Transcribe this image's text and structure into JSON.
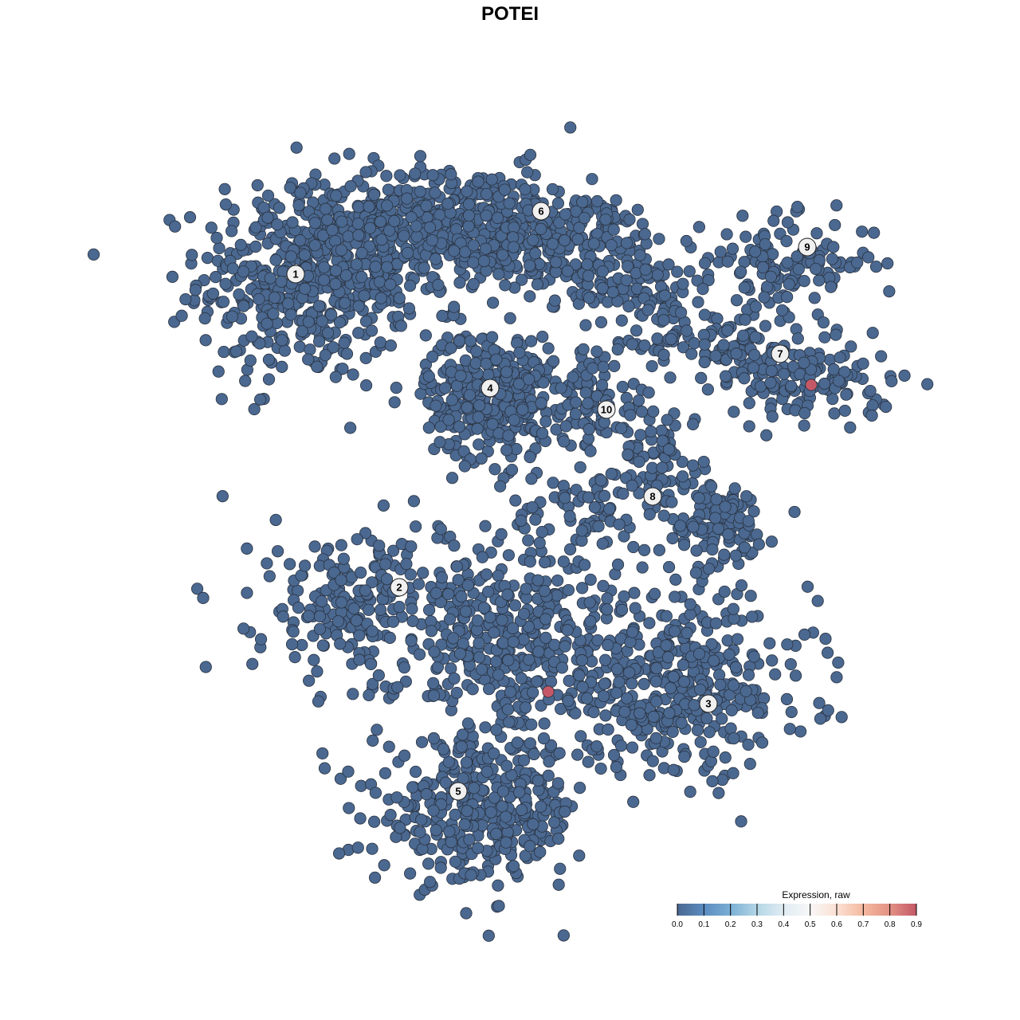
{
  "chart_data": {
    "type": "scatter",
    "title": "POTEI",
    "xlabel": "",
    "ylabel": "",
    "grid": false,
    "axes_visible": false,
    "point_color_low": "#4a6890",
    "point_color_high": "#c45867",
    "colorbar": {
      "title": "Expression, raw",
      "range": [
        0.0,
        0.9
      ],
      "ticks": [
        "0.0",
        "0.1",
        "0.2",
        "0.3",
        "0.4",
        "0.5",
        "0.6",
        "0.7",
        "0.8",
        "0.9"
      ],
      "colors": [
        "#4a6890",
        "#5b8cc0",
        "#7bafd4",
        "#b4d6e6",
        "#e0ecf3",
        "#f7f7f7",
        "#fbe0d3",
        "#f4b9a0",
        "#e39184",
        "#c45867"
      ],
      "placement": "bottom-right"
    },
    "cluster_labels": [
      {
        "label": "1",
        "x": -26.9,
        "y": 29.6
      },
      {
        "label": "2",
        "x": -13.9,
        "y": -9.7
      },
      {
        "label": "3",
        "x": 24.9,
        "y": -24.3
      },
      {
        "label": "4",
        "x": -2.5,
        "y": 15.3
      },
      {
        "label": "5",
        "x": -6.5,
        "y": -35.3
      },
      {
        "label": "6",
        "x": 3.9,
        "y": 37.5
      },
      {
        "label": "7",
        "x": 33.9,
        "y": 19.6
      },
      {
        "label": "8",
        "x": 17.9,
        "y": 1.7
      },
      {
        "label": "9",
        "x": 37.3,
        "y": 33.0
      },
      {
        "label": "10",
        "x": 12.1,
        "y": 12.6
      }
    ],
    "cell_groups": [
      {
        "cluster": "1",
        "center": [
          -26,
          29
        ],
        "sd": [
          6.5,
          6.5
        ],
        "n": 450,
        "expression": 0
      },
      {
        "cluster": "1",
        "center": [
          -15,
          33
        ],
        "sd": [
          6,
          4.5
        ],
        "n": 220,
        "expression": 0
      },
      {
        "cluster": "6",
        "center": [
          -4,
          36
        ],
        "sd": [
          7,
          3.5
        ],
        "n": 300,
        "expression": 0
      },
      {
        "cluster": "6",
        "center": [
          9,
          33
        ],
        "sd": [
          6,
          3.5
        ],
        "n": 200,
        "expression": 0
      },
      {
        "cluster": "6",
        "center": [
          17,
          27
        ],
        "sd": [
          4,
          3
        ],
        "n": 80,
        "expression": 0
      },
      {
        "cluster": "9",
        "center": [
          35,
          31
        ],
        "sd": [
          5.5,
          2.8
        ],
        "n": 130,
        "expression": 0
      },
      {
        "cluster": "7",
        "center": [
          27,
          21
        ],
        "sd": [
          5,
          2.5
        ],
        "n": 100,
        "expression": 0
      },
      {
        "cluster": "7",
        "center": [
          38,
          16
        ],
        "sd": [
          5,
          2.5
        ],
        "n": 130,
        "expression": 0
      },
      {
        "cluster": "4",
        "center": [
          -2.5,
          14.5
        ],
        "sd": [
          4,
          4
        ],
        "n": 350,
        "expression": 0
      },
      {
        "cluster": "10",
        "center": [
          11,
          14
        ],
        "sd": [
          2.8,
          3.5
        ],
        "n": 80,
        "expression": 0
      },
      {
        "cluster": "8",
        "center": [
          26,
          -2
        ],
        "sd": [
          3.5,
          3
        ],
        "n": 110,
        "expression": 0
      },
      {
        "cluster": "8",
        "center": [
          19,
          6
        ],
        "sd": [
          2.5,
          4
        ],
        "n": 80,
        "expression": 0
      },
      {
        "cluster": "8",
        "center": [
          10,
          0
        ],
        "sd": [
          5,
          2.5
        ],
        "n": 60,
        "expression": 0
      },
      {
        "cluster": "2",
        "center": [
          -20,
          -12
        ],
        "sd": [
          6,
          4.5
        ],
        "n": 200,
        "expression": 0
      },
      {
        "cluster": "3",
        "center": [
          22,
          -22
        ],
        "sd": [
          8,
          5.5
        ],
        "n": 350,
        "expression": 0
      },
      {
        "cluster": "5",
        "center": [
          -4,
          -38
        ],
        "sd": [
          6.5,
          4.5
        ],
        "n": 350,
        "expression": 0
      },
      {
        "cluster": "5",
        "center": [
          1,
          -17
        ],
        "sd": [
          7.5,
          7.5
        ],
        "n": 450,
        "expression": 0
      }
    ],
    "highlighted_cells": [
      {
        "x": 37.8,
        "y": 15.7,
        "expression": 0.9
      },
      {
        "x": 4.8,
        "y": -22.8,
        "expression": 0.9
      }
    ]
  }
}
